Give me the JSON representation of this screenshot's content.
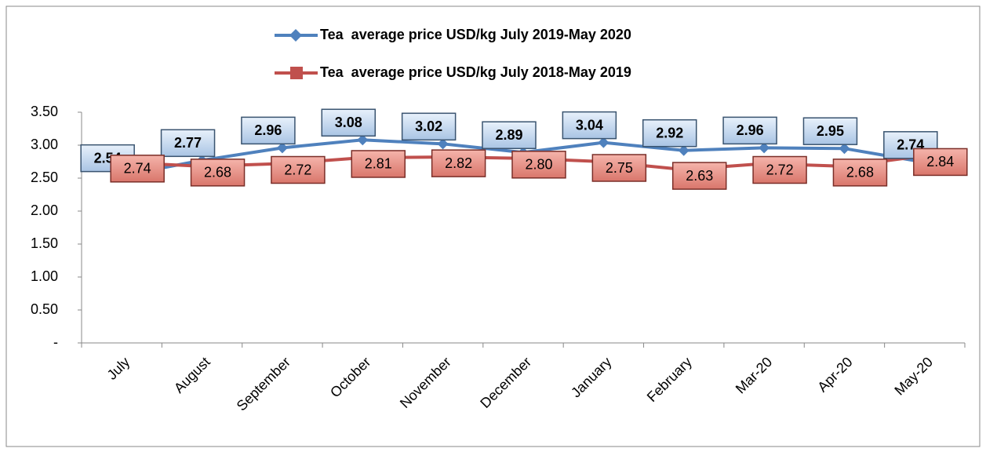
{
  "chart_data": {
    "type": "line",
    "categories": [
      "July",
      "August",
      "September",
      "October",
      "November",
      "December",
      "January",
      "February",
      "Mar-20",
      "Apr-20",
      "May-20"
    ],
    "series": [
      {
        "name": "Tea  average price USD/kg July 2019-May 2020",
        "color": "#4f81bd",
        "values": [
          2.54,
          2.77,
          2.96,
          3.08,
          3.02,
          2.89,
          3.04,
          2.92,
          2.96,
          2.95,
          2.74
        ],
        "value_labels": [
          "2.54",
          "2.77",
          "2.96",
          "3.08",
          "3.02",
          "2.89",
          "3.04",
          "2.92",
          "2.96",
          "2.95",
          "2.74"
        ]
      },
      {
        "name": "Tea  average price USD/kg July 2018-May 2019",
        "color": "#c0504d",
        "values": [
          2.74,
          2.68,
          2.72,
          2.81,
          2.82,
          2.8,
          2.75,
          2.63,
          2.72,
          2.68,
          2.84
        ],
        "value_labels": [
          "2.74",
          "2.68",
          "2.72",
          "2.81",
          "2.82",
          "2.80",
          "2.75",
          "2.63",
          "2.72",
          "2.68",
          "2.84"
        ]
      }
    ],
    "ylim": [
      0,
      3.5
    ],
    "yticks": [
      {
        "value": 0,
        "label": "-"
      },
      {
        "value": 0.5,
        "label": "0.50"
      },
      {
        "value": 1,
        "label": "1.00"
      },
      {
        "value": 1.5,
        "label": "1.50"
      },
      {
        "value": 2,
        "label": "2.00"
      },
      {
        "value": 2.5,
        "label": "2.50"
      },
      {
        "value": 3,
        "label": "3.00"
      },
      {
        "value": 3.5,
        "label": "3.50"
      }
    ],
    "legend": "top"
  }
}
